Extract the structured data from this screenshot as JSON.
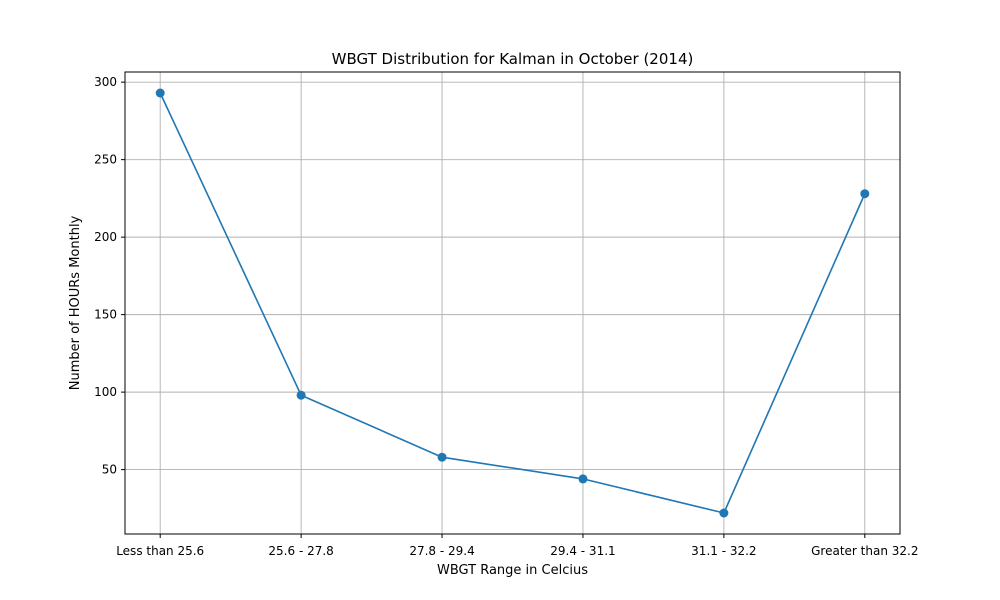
{
  "chart_data": {
    "type": "line",
    "title": "WBGT Distribution for Kalman in October (2014)",
    "xlabel": "WBGT Range in Celcius",
    "ylabel": "Number of HOURs Monthly",
    "categories": [
      "Less than 25.6",
      "25.6 - 27.8",
      "27.8 - 29.4",
      "29.4 - 31.1",
      "31.1 - 32.2",
      "Greater than 32.2"
    ],
    "series": [
      {
        "values": [
          293,
          98,
          58,
          44,
          22,
          228
        ],
        "color": "#1f77b4",
        "marker": "circle"
      }
    ],
    "yticks": [
      50,
      100,
      150,
      200,
      250,
      300
    ],
    "ylim": [
      8.45,
      306.55
    ],
    "grid": true
  }
}
